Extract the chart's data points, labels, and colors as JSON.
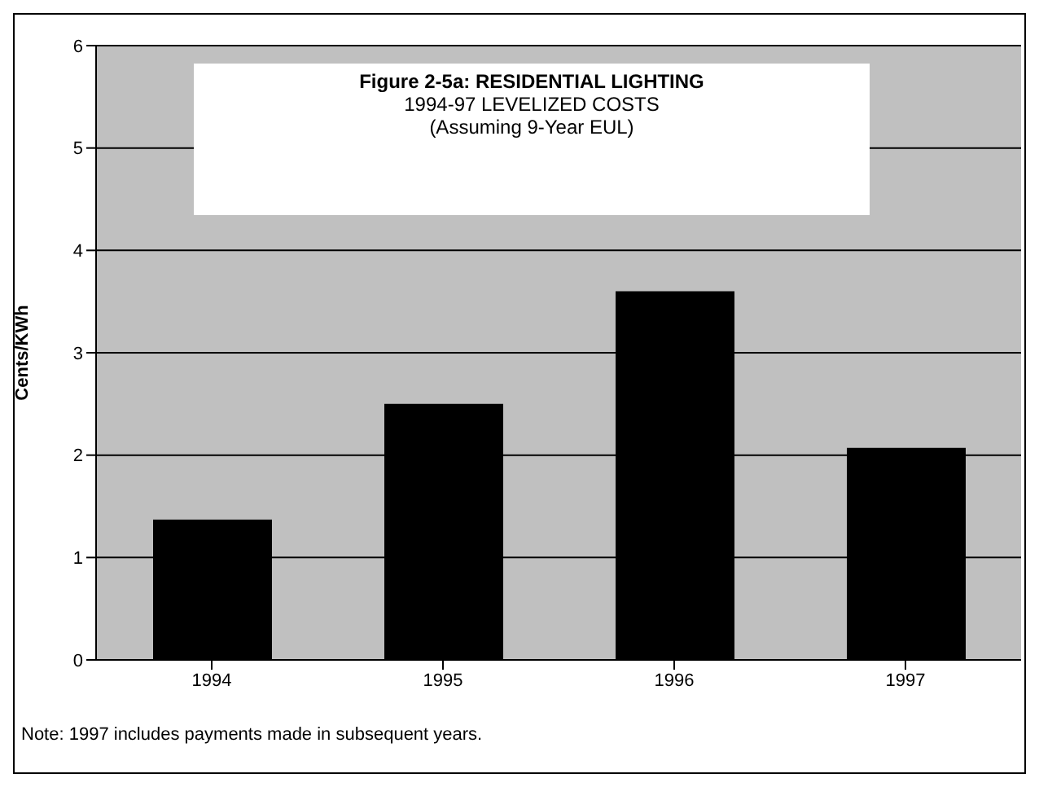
{
  "chart_data": {
    "type": "bar",
    "title": "Figure 2-5a:  RESIDENTIAL LIGHTING",
    "subtitle": "1994-97 LEVELIZED COSTS\n(Assuming 9-Year EUL)",
    "ylabel": "Cents/KWh",
    "categories": [
      "1994",
      "1995",
      "1996",
      "1997"
    ],
    "values": [
      1.37,
      2.5,
      3.6,
      2.07
    ],
    "color": "#000000",
    "ylim": [
      0,
      6
    ],
    "yticks": [
      0,
      1,
      2,
      3,
      4,
      5,
      6
    ],
    "grid": "y",
    "annotations": [
      "Note: 1997 includes payments made in subsequent years."
    ]
  }
}
